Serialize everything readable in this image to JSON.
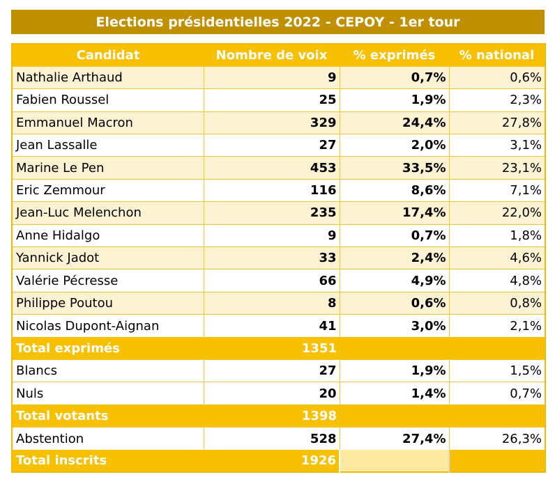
{
  "title": "Elections présidentielles 2022 - CEPOY - 1er tour",
  "headers": [
    "Candidat",
    "Nombre de voix",
    "% exprimés",
    "% national"
  ],
  "candidates": [
    {
      "name": "Nathalie Arthaud",
      "votes": "9",
      "pct": "0,7%",
      "national": "0,6%"
    },
    {
      "name": "Fabien Roussel",
      "votes": "25",
      "pct": "1,9%",
      "national": "2,3%"
    },
    {
      "name": "Emmanuel Macron",
      "votes": "329",
      "pct": "24,4%",
      "national": "27,8%"
    },
    {
      "name": "Jean Lassalle",
      "votes": "27",
      "pct": "2,0%",
      "national": "3,1%"
    },
    {
      "name": "Marine Le Pen",
      "votes": "453",
      "pct": "33,5%",
      "national": "23,1%"
    },
    {
      "name": "Eric Zemmour",
      "votes": "116",
      "pct": "8,6%",
      "national": "7,1%"
    },
    {
      "name": "Jean-Luc Melenchon",
      "votes": "235",
      "pct": "17,4%",
      "national": "22,0%"
    },
    {
      "name": "Anne Hidalgo",
      "votes": "9",
      "pct": "0,7%",
      "national": "1,8%"
    },
    {
      "name": "Yannick Jadot",
      "votes": "33",
      "pct": "2,4%",
      "national": "4,6%"
    },
    {
      "name": "Valérie Pécresse",
      "votes": "66",
      "pct": "4,9%",
      "national": "4,8%"
    },
    {
      "name": "Philippe Poutou",
      "votes": "8",
      "pct": "0,6%",
      "national": "0,8%"
    },
    {
      "name": "Nicolas Dupont-Aignan",
      "votes": "41",
      "pct": "3,0%",
      "national": "2,1%"
    }
  ],
  "total_exprimes": {
    "label": "Total exprimés",
    "value": "1351"
  },
  "blancs": {
    "name": "Blancs",
    "votes": "27",
    "pct": "1,9%",
    "national": "1,5%"
  },
  "nuls": {
    "name": "Nuls",
    "votes": "20",
    "pct": "1,4%",
    "national": "0,7%"
  },
  "total_votants": {
    "label": "Total votants",
    "value": "1398"
  },
  "abstention": {
    "name": "Abstention",
    "votes": "528",
    "pct": "27,4%",
    "national": "26,3%"
  },
  "total_inscrits": {
    "label": "Total inscrits",
    "value": "1926"
  },
  "colors": {
    "title_bg": "#c09000",
    "header_bg": "#f7c000",
    "row_alt": "#fdf2d2",
    "text": "#000000"
  }
}
